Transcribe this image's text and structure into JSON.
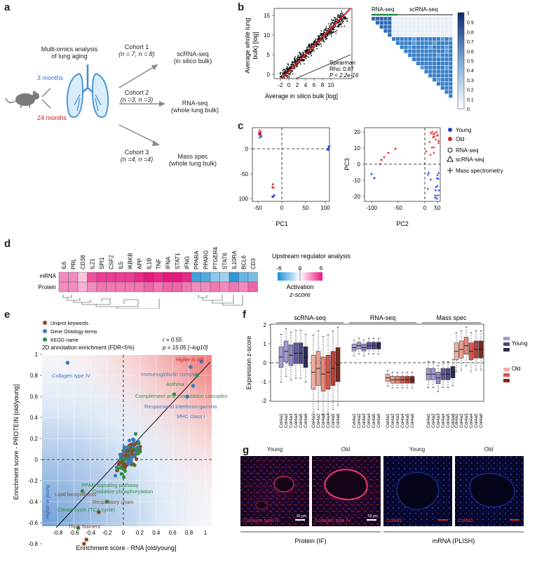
{
  "panel_labels": [
    "a",
    "b",
    "c",
    "d",
    "e",
    "f",
    "g"
  ],
  "a": {
    "title_line1": "Multi-omics analysis",
    "title_line2": "of lung aging",
    "age_young": "3 months",
    "age_old": "24 months",
    "cohorts": [
      {
        "name": "Cohort 1",
        "n": "(n = 7, n = 8)",
        "method": "scRNA-seq",
        "detail": "(in silico bulk)"
      },
      {
        "name": "Cohort 2",
        "n": "(n =3, n =3)",
        "method": "RNA-seq",
        "detail": "(whole lung bulk)"
      },
      {
        "name": "Cohort 3",
        "n": "(n =4, n =4)",
        "method": "Mass spec",
        "detail": "(whole lung bulk)"
      }
    ]
  },
  "b": {
    "ylabel_1": "Average whole lung",
    "ylabel_2": "bulk) [log]",
    "xlabel": "Average in silico bulk [log]",
    "x_ticks": [
      "-2",
      "0",
      "2",
      "4",
      "6",
      "8",
      "10"
    ],
    "y_ticks": [
      "0",
      "5",
      "10",
      "15"
    ],
    "stat_1": "Spearman",
    "stat_2": "Rho: 0.87",
    "stat_3": "P < 2.2e-16",
    "heatmap_label_left": "RNA-seq",
    "heatmap_label_right": "scRNA-seq",
    "colorbar_ticks": [
      "1",
      "0.9",
      "0.8",
      "0.7",
      "0.6",
      "0.5",
      "0.4",
      "0.3",
      "0.2",
      "0.1",
      "0"
    ]
  },
  "c": {
    "pc1_label": "PC1",
    "pc2_label": "PC2",
    "pc3_label": "PC3",
    "left_x_ticks": [
      "-50",
      "0",
      "50",
      "100"
    ],
    "left_y_ticks": [
      "0",
      "-50",
      "-100"
    ],
    "right_x_ticks": [
      "-100",
      "-50",
      "0",
      "50"
    ],
    "right_y_ticks": [
      "20",
      "10",
      "0",
      "-10",
      "-20"
    ],
    "legend": {
      "young": "Young",
      "old": "Old",
      "rna": "RNA-seq",
      "scrna": "scRNA-seq",
      "mass": "Mass spectrometry",
      "young_color": "#1f3fd6",
      "old_color": "#e02020"
    }
  },
  "d": {
    "genes": [
      "IL6",
      "PRL",
      "CD38",
      "IL21",
      "SPI1",
      "CSF2",
      "IL5",
      "IKBKB",
      "APP",
      "IL1B",
      "TNF",
      "IFNA",
      "STAT1",
      "IFNG",
      "PPARA",
      "PPARG",
      "PTGER4",
      "STAT6",
      "IL10RA",
      "BCL6",
      "CD3"
    ],
    "row_labels": [
      "mRNA",
      "Protein"
    ],
    "mrna_z": [
      3,
      3,
      1.5,
      4.5,
      5,
      5,
      5,
      5,
      5.5,
      6,
      5.5,
      6,
      6,
      5.5,
      -5,
      -4.5,
      -3,
      -2.5,
      -5.5,
      -4,
      -3.5
    ],
    "protein_z": [
      3,
      3,
      2,
      3,
      3.5,
      3.5,
      3.5,
      3.5,
      3.5,
      4,
      3.5,
      4,
      4,
      3.5,
      3,
      3,
      3.5,
      3,
      3.5,
      3,
      4
    ],
    "legend_title": "Upstream regulator analysis",
    "legend_ticks": [
      "-6",
      "0",
      "6"
    ],
    "legend_label_1": "Activation",
    "legend_label_2": "z-score"
  },
  "e": {
    "legend": [
      "Uniprot keywords",
      "Gene Ontology terms",
      "KEGG name"
    ],
    "legend_colors": [
      "#8b4a26",
      "#3b7bc4",
      "#2f8f3f"
    ],
    "title": "2D annotation enrichment (FDR<5%)",
    "stat_r": "r = 0.55",
    "stat_p": "p = 15.05 [–log10]",
    "higher_old": "Higher in old",
    "higher_young": "Higher in young",
    "xlabel": "Enrichment score - RNA [old/young]",
    "ylabel": "Enrichment score - PROTEIN [old/young]",
    "x_ticks": [
      "-0.8",
      "-0.6",
      "-0.4",
      "-0.2",
      "0",
      "0.2",
      "0.4",
      "0.6",
      "0.8",
      "1"
    ],
    "y_ticks": [
      "1",
      "0.8",
      "0.6",
      "0.4",
      "0.2",
      "0",
      "-0.2",
      "-0.4",
      "-0.6",
      "-0.8"
    ],
    "annotations": [
      {
        "text": "Collagen type IV",
        "color": "#3b7bc4"
      },
      {
        "text": "Immunoglobulin complex",
        "color": "#3b7bc4"
      },
      {
        "text": "Asthma",
        "color": "#2f8f3f"
      },
      {
        "text": "Complement and coagulation cascades",
        "color": "#2f8f3f"
      },
      {
        "text": "Response to interferon-gamma",
        "color": "#3b7bc4"
      },
      {
        "text": "MHC class I",
        "color": "#3b7bc4"
      },
      {
        "text": "PPAR signaling pathway",
        "color": "#2f8f3f"
      },
      {
        "text": "Lipid biosynthesis",
        "color": "#8b4a26"
      },
      {
        "text": "Oxidative phosphorylation",
        "color": "#2f8f3f"
      },
      {
        "text": "Respiratory chain",
        "color": "#8b4a26"
      },
      {
        "text": "Citrate cycle (TCA cycle)",
        "color": "#2f8f3f"
      },
      {
        "text": "Thick filament",
        "color": "#8b4a26"
      }
    ]
  },
  "f": {
    "ylabel": "Expression z-score",
    "y_ticks": [
      "2",
      "1",
      "0",
      "-1",
      "-2"
    ],
    "groups": [
      "scRNA-seq",
      "RNA-seq",
      "Mass spec"
    ],
    "genes": [
      "Col4a1",
      "Col4a2",
      "Col4a3",
      "Col4a4",
      "Col4a5",
      "Col4a6"
    ],
    "legend_young": "Young",
    "legend_old": "Old",
    "medians": {
      "scrna_young": [
        0.3,
        0.6,
        0.4,
        0.5,
        0.5,
        0.3
      ],
      "scrna_old": [
        -0.5,
        -0.3,
        -0.6,
        -0.5,
        -0.3,
        -0.1
      ],
      "rna_young": [
        0.8,
        0.9,
        0.8,
        0.9,
        0.9,
        0.9
      ],
      "rna_old": [
        -0.8,
        -0.9,
        -0.9,
        -0.9,
        -0.9,
        -0.9
      ],
      "mass_young": [
        -0.6,
        -0.6,
        -0.8,
        -0.6,
        -0.6,
        -0.5
      ],
      "mass_old": [
        0.6,
        0.7,
        0.9,
        0.6,
        0.7,
        0.7
      ]
    }
  },
  "g": {
    "headers": [
      "Young",
      "Old",
      "Young",
      "Old"
    ],
    "image_labels": [
      "Collagen type IV",
      "Collagen type IV",
      "Col4a1",
      "Col4a1"
    ],
    "scale_bar": "50 μm",
    "footer_left": "Protein (IF)",
    "footer_right": "mRNA (PLISH)"
  }
}
